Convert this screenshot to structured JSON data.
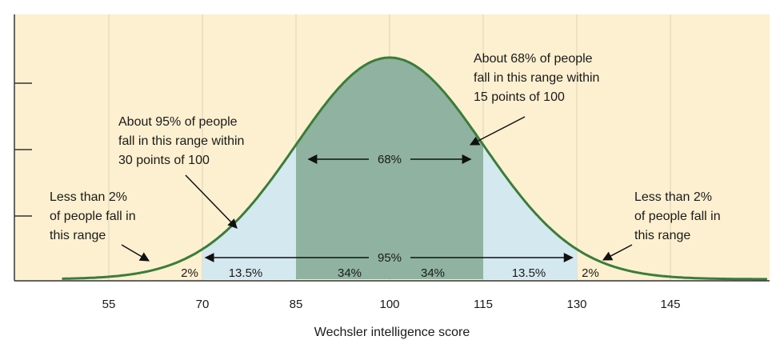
{
  "chart_data": {
    "type": "area",
    "title": "",
    "xlabel": "Wechsler intelligence score",
    "ylabel": "",
    "x_ticks": [
      55,
      70,
      85,
      100,
      115,
      130,
      145
    ],
    "xlim": [
      45,
      165
    ],
    "mean": 100,
    "sd": 15,
    "regions": [
      {
        "from": 55,
        "to": 70,
        "label": "2%"
      },
      {
        "from": 70,
        "to": 85,
        "label": "13.5%"
      },
      {
        "from": 85,
        "to": 100,
        "label": "34%"
      },
      {
        "from": 100,
        "to": 115,
        "label": "34%"
      },
      {
        "from": 115,
        "to": 130,
        "label": "13.5%"
      },
      {
        "from": 130,
        "to": 145,
        "label": "2%"
      }
    ],
    "ranges": [
      {
        "from": 85,
        "to": 115,
        "label": "68%"
      },
      {
        "from": 70,
        "to": 130,
        "label": "95%"
      }
    ],
    "annotations": {
      "center": [
        "About 68% of people",
        "fall in this range within",
        "15 points of 100"
      ],
      "wide": [
        "About 95% of people",
        "fall in this range within",
        "30 points of 100"
      ],
      "left_tail": [
        "Less than 2%",
        "of people fall in",
        "this range"
      ],
      "right_tail": [
        "Less than 2%",
        "of people fall in",
        "this range"
      ]
    },
    "colors": {
      "background": "#fdf0d0",
      "grid": "#e8dcc0",
      "curve": "#3a7d3a",
      "inner_fill": "#8fb3a0",
      "outer_fill": "#d4e8ef"
    }
  }
}
